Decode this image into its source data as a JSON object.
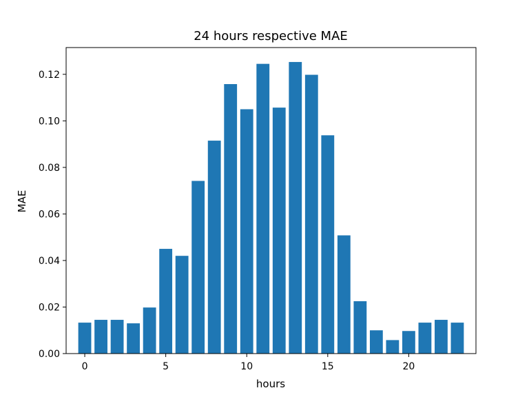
{
  "chart_data": {
    "type": "bar",
    "title": "24 hours respective MAE",
    "xlabel": "hours",
    "ylabel": "MAE",
    "x": [
      0,
      1,
      2,
      3,
      4,
      5,
      6,
      7,
      8,
      9,
      10,
      11,
      12,
      13,
      14,
      15,
      16,
      17,
      18,
      19,
      20,
      21,
      22,
      23
    ],
    "values": [
      0.0133,
      0.0145,
      0.0145,
      0.013,
      0.0198,
      0.045,
      0.042,
      0.0742,
      0.0915,
      0.1158,
      0.105,
      0.1245,
      0.1057,
      0.1253,
      0.1198,
      0.0938,
      0.0508,
      0.0225,
      0.01,
      0.0058,
      0.0097,
      0.0133,
      0.0145,
      0.0133
    ],
    "xticks": [
      0,
      5,
      10,
      15,
      20
    ],
    "xtick_labels": [
      "0",
      "5",
      "10",
      "15",
      "20"
    ],
    "yticks": [
      0.0,
      0.02,
      0.04,
      0.06,
      0.08,
      0.1,
      0.12
    ],
    "ytick_labels": [
      "0.00",
      "0.02",
      "0.04",
      "0.06",
      "0.08",
      "0.10",
      "0.12"
    ],
    "xlim": [
      -1.15,
      24.15
    ],
    "ylim": [
      0,
      0.1315
    ],
    "bar_color": "#1f77b4",
    "grid": false,
    "legend": "none"
  }
}
